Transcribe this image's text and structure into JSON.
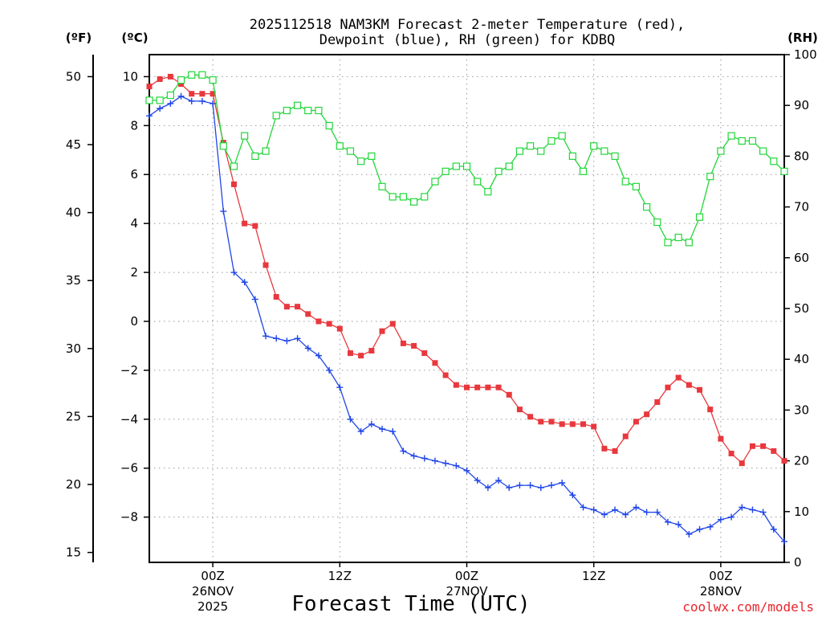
{
  "chart_data": {
    "type": "line",
    "title_line1": "2025112518 NAM3KM Forecast 2-meter Temperature (red),",
    "title_line2": "Dewpoint (blue), RH (green) for KDBQ",
    "xlabel": "Forecast Time (UTC)",
    "credit": "coolwx.com/models",
    "units": {
      "fahrenheit": "(ºF)",
      "celsius": "(ºC)",
      "rh": "(RH)"
    },
    "x_range_hours": [
      -6,
      54
    ],
    "x_ticks": [
      {
        "hour": 0,
        "lines": [
          "00Z",
          "26NOV",
          "2025"
        ]
      },
      {
        "hour": 12,
        "lines": [
          "12Z"
        ]
      },
      {
        "hour": 24,
        "lines": [
          "00Z",
          "27NOV"
        ]
      },
      {
        "hour": 36,
        "lines": [
          "12Z"
        ]
      },
      {
        "hour": 48,
        "lines": [
          "00Z",
          "28NOV"
        ]
      }
    ],
    "celsius_axis": {
      "range": [
        -9.85,
        10.9
      ],
      "ticks": [
        -8,
        -6,
        -4,
        -2,
        0,
        2,
        4,
        6,
        8,
        10
      ]
    },
    "fahrenheit_axis": {
      "ticks": [
        15,
        20,
        25,
        30,
        35,
        40,
        45,
        50
      ]
    },
    "rh_axis": {
      "range": [
        0,
        100
      ],
      "ticks": [
        0,
        10,
        20,
        30,
        40,
        50,
        60,
        70,
        80,
        90,
        100
      ]
    },
    "x_hours": [
      -6,
      -5,
      -4,
      -3,
      -2,
      -1,
      0,
      1,
      2,
      3,
      4,
      5,
      6,
      7,
      8,
      9,
      10,
      11,
      12,
      13,
      14,
      15,
      16,
      17,
      18,
      19,
      20,
      21,
      22,
      23,
      24,
      25,
      26,
      27,
      28,
      29,
      30,
      31,
      32,
      33,
      34,
      35,
      36,
      37,
      38,
      39,
      40,
      41,
      42,
      43,
      44,
      45,
      46,
      47,
      48,
      49,
      50,
      51,
      52,
      53,
      54
    ],
    "series": [
      {
        "name": "2-meter Temperature",
        "units": "C",
        "color": "#e8383d",
        "marker": "filled-square",
        "values": [
          9.6,
          9.9,
          10.0,
          9.7,
          9.3,
          9.3,
          9.3,
          7.3,
          5.6,
          4.0,
          3.9,
          2.3,
          1.0,
          0.6,
          0.6,
          0.3,
          0.0,
          -0.1,
          -0.3,
          -1.3,
          -1.4,
          -1.2,
          -0.4,
          -0.1,
          -0.9,
          -1.0,
          -1.3,
          -1.7,
          -2.2,
          -2.6,
          -2.7,
          -2.7,
          -2.7,
          -2.7,
          -3.0,
          -3.6,
          -3.9,
          -4.1,
          -4.1,
          -4.2,
          -4.2,
          -4.2,
          -4.3,
          -5.2,
          -5.3,
          -4.7,
          -4.1,
          -3.8,
          -3.3,
          -2.7,
          -2.3,
          -2.6,
          -2.8,
          -3.6,
          -4.8,
          -5.4,
          -5.8,
          -5.1,
          -5.1,
          -5.3,
          -5.7
        ]
      },
      {
        "name": "Dewpoint",
        "units": "C",
        "color": "#1f45e8",
        "marker": "plus",
        "values": [
          8.4,
          8.7,
          8.9,
          9.2,
          9.0,
          9.0,
          8.9,
          4.5,
          2.0,
          1.6,
          0.9,
          -0.6,
          -0.7,
          -0.8,
          -0.7,
          -1.1,
          -1.4,
          -2.0,
          -2.7,
          -4.0,
          -4.5,
          -4.2,
          -4.4,
          -4.5,
          -5.3,
          -5.5,
          -5.6,
          -5.7,
          -5.8,
          -5.9,
          -6.1,
          -6.5,
          -6.8,
          -6.5,
          -6.8,
          -6.7,
          -6.7,
          -6.8,
          -6.7,
          -6.6,
          -7.1,
          -7.6,
          -7.7,
          -7.9,
          -7.7,
          -7.9,
          -7.6,
          -7.8,
          -7.8,
          -8.2,
          -8.3,
          -8.7,
          -8.5,
          -8.4,
          -8.1,
          -8.0,
          -7.6,
          -7.7,
          -7.8,
          -8.5,
          -9.0
        ]
      },
      {
        "name": "RH",
        "units": "%",
        "color": "#22d63a",
        "marker": "open-square",
        "values": [
          91,
          91,
          92,
          95,
          96,
          96,
          95,
          82,
          78,
          84,
          80,
          81,
          88,
          89,
          90,
          89,
          89,
          86,
          82,
          81,
          79,
          80,
          74,
          72,
          72,
          71,
          72,
          75,
          77,
          78,
          78,
          75,
          73,
          77,
          78,
          81,
          82,
          81,
          83,
          84,
          80,
          77,
          82,
          81,
          80,
          75,
          74,
          70,
          67,
          63,
          64,
          63,
          68,
          76,
          81,
          84,
          83,
          83,
          81,
          79,
          77
        ]
      }
    ]
  }
}
